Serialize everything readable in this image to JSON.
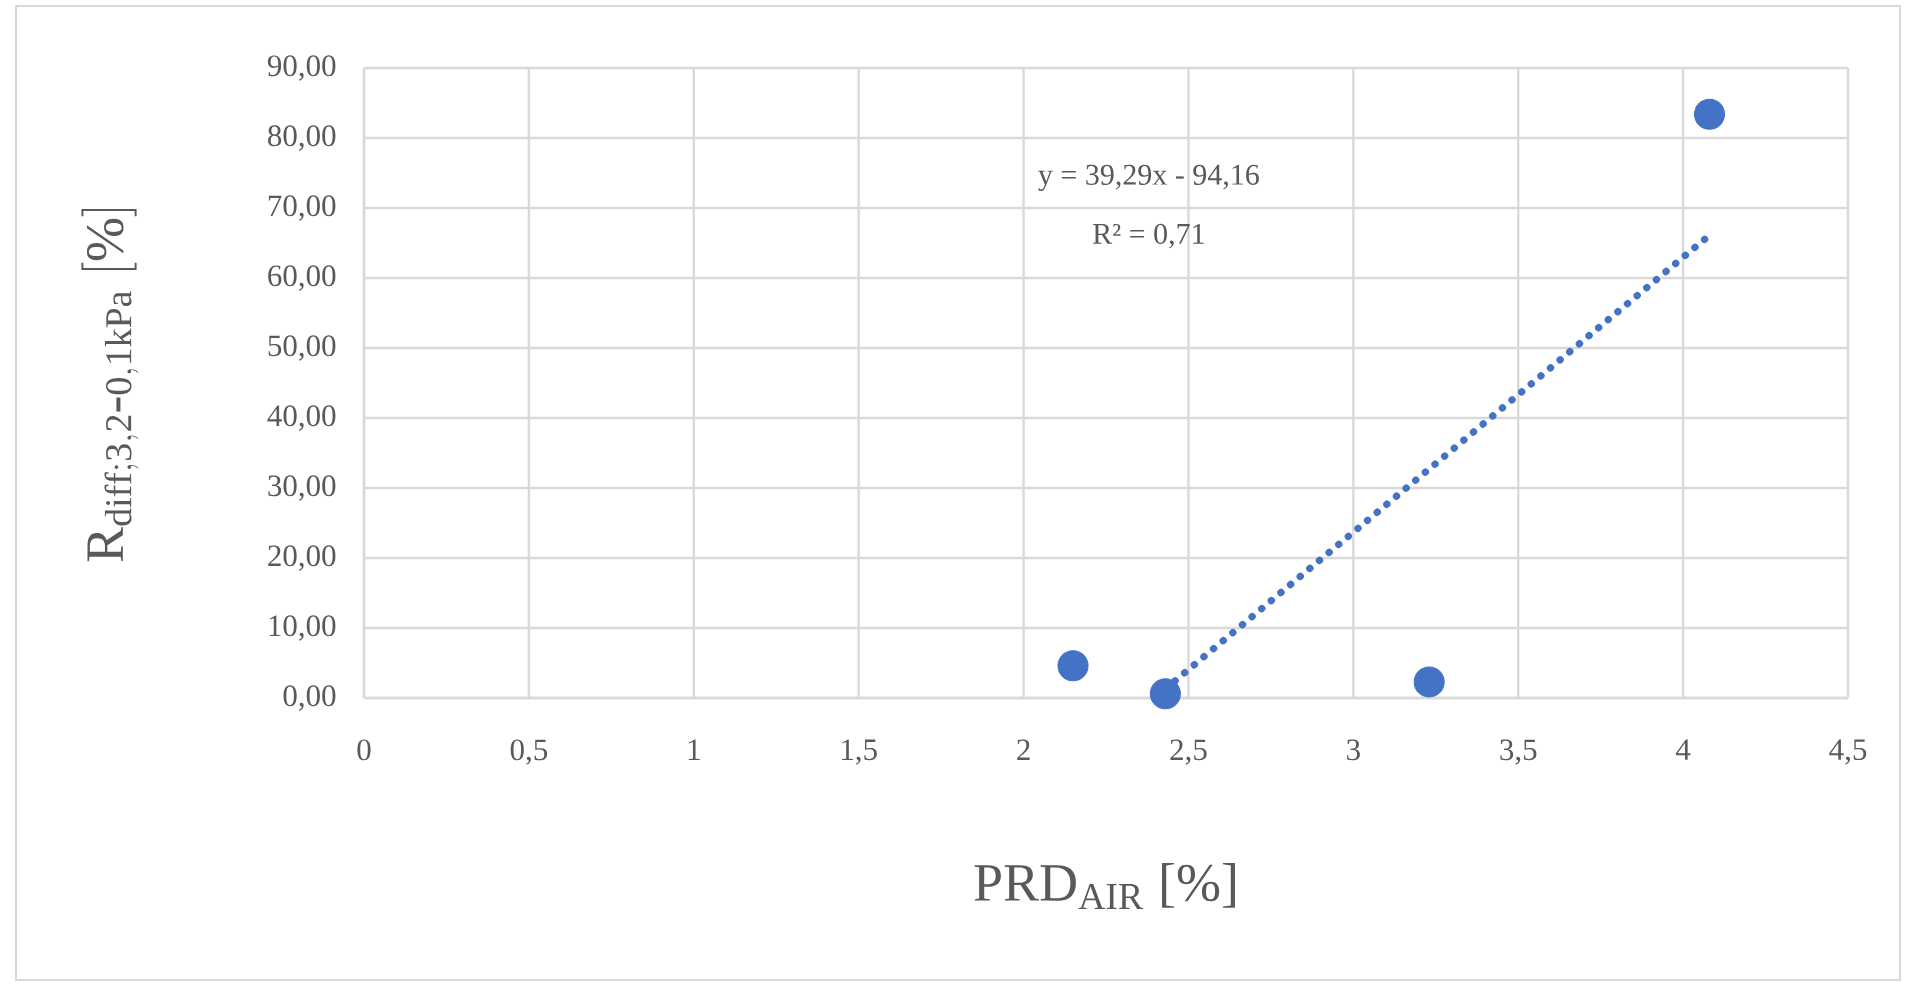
{
  "chart_data": {
    "type": "scatter",
    "xlabel": "PRD$_{AIR}$ [%]",
    "ylabel": "\\mathrm{R_{diff;3{,}2\\mbox{-}0{,}1kPa}\\ [\\%]}",
    "annotations": [
      "y = 39,29x - 94,16",
      "R² = 0,71"
    ],
    "series": [
      {
        "color": "#4472c4",
        "marker": "circle",
        "x": [
          2.15,
          2.43,
          3.23,
          4.08
        ],
        "values": [
          4.6,
          0.6,
          2.3,
          83.4
        ]
      },
      {
        "type": "line",
        "color": "#4472c4",
        "line_style": "dotted",
        "marker": "none",
        "x": [
          2.43,
          4.08
        ],
        "values": [
          1.3,
          66.1
        ]
      }
    ],
    "xlim": [
      0,
      4.5
    ],
    "ylim": [
      0,
      90
    ],
    "xticks": [
      0,
      {
        "value": 0.5,
        "label": "0,5"
      },
      1,
      {
        "value": 1.5,
        "label": "1,5"
      },
      2,
      {
        "value": 2.5,
        "label": "2,5"
      },
      3,
      {
        "value": 3.5,
        "label": "3,5"
      },
      4,
      {
        "value": 4.5,
        "label": "4,5"
      }
    ],
    "yticks": [
      {
        "value": 0,
        "label": "0,00"
      },
      {
        "value": 10,
        "label": "10,00"
      },
      {
        "value": 20,
        "label": "20,00"
      },
      {
        "value": 30,
        "label": "30,00"
      },
      {
        "value": 40,
        "label": "40,00"
      },
      {
        "value": 50,
        "label": "50,00"
      },
      {
        "value": 60,
        "label": "60,00"
      },
      {
        "value": 70,
        "label": "70,00"
      },
      {
        "value": 80,
        "label": "80,00"
      },
      {
        "value": 90,
        "label": "90,00"
      }
    ],
    "grid": true
  }
}
